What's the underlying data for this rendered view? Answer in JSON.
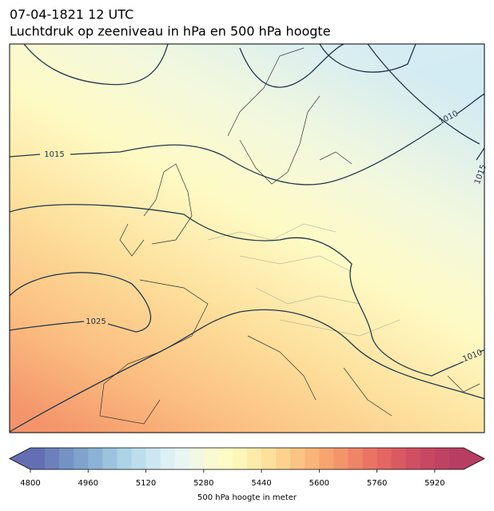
{
  "title": [
    "07-04-1821 12 UTC",
    "Luchtdruk op zeeniveau in hPa en 500 hPa hoogte"
  ],
  "map": {
    "isobar_labels": [
      1015,
      1025,
      1010,
      1010,
      1015
    ]
  },
  "colorbar": {
    "label": "500 hPa hoogte in meter",
    "lim": [
      4800,
      6000
    ],
    "ticks": [
      4800,
      4960,
      5120,
      5280,
      5440,
      5600,
      5760,
      5920
    ],
    "colors": [
      "#646eb3",
      "#6c80bb",
      "#7592c4",
      "#80a3cc",
      "#8cb3d5",
      "#9cc3dd",
      "#acd3e6",
      "#bcdeec",
      "#cce7f1",
      "#dcf0f6",
      "#e8f5f4",
      "#f1f8e4",
      "#f8fbd2",
      "#fdfcc4",
      "#fef6b8",
      "#feebab",
      "#fde09c",
      "#fcd28e",
      "#fbc482",
      "#f9b478",
      "#f7a470",
      "#f4946a",
      "#f08466",
      "#ea7464",
      "#e36662",
      "#da5a62",
      "#d14f62",
      "#c84862",
      "#c04262",
      "#b83d62"
    ]
  }
}
